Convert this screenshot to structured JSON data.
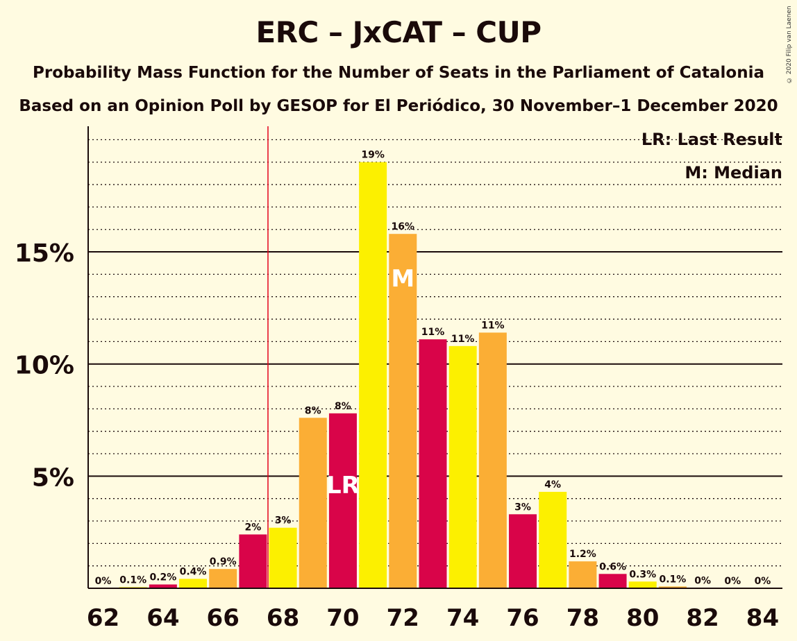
{
  "title": "ERC – JxCAT – CUP",
  "subtitle1": "Probability Mass Function for the Number of Seats in the Parliament of Catalonia",
  "subtitle2": "Based on an Opinion Poll by GESOP for El Periódico, 30 November–1 December 2020",
  "copyright": "© 2020 Filip van Laenen",
  "legend": {
    "last_result": "LR: Last Result",
    "median": "M: Median"
  },
  "colors": {
    "background": "#FFFBE1",
    "red": "#D90449",
    "yellow": "#FCF000",
    "orange": "#FBAE35",
    "last_result_line": "#E3001B"
  },
  "chart_data": {
    "type": "bar",
    "x": [
      62,
      63,
      64,
      65,
      66,
      67,
      68,
      69,
      70,
      71,
      72,
      73,
      74,
      75,
      76,
      77,
      78,
      79,
      80,
      81,
      82,
      83,
      84
    ],
    "values": [
      0,
      0.05,
      0.17,
      0.42,
      0.86,
      2.4,
      2.7,
      7.6,
      7.8,
      19,
      15.8,
      11.1,
      10.8,
      11.4,
      3.3,
      4.3,
      1.2,
      0.64,
      0.3,
      0.08,
      0.01,
      0,
      0
    ],
    "labels": [
      "0%",
      "0.1%",
      "0.2%",
      "0.4%",
      "0.9%",
      "2%",
      "3%",
      "8%",
      "8%",
      "19%",
      "16%",
      "11%",
      "11%",
      "11%",
      "3%",
      "4%",
      "1.2%",
      "0.6%",
      "0.3%",
      "0.1%",
      "0%",
      "0%",
      "0%"
    ],
    "bar_colors": [
      "red",
      "yellow",
      "red",
      "yellow",
      "orange",
      "red",
      "yellow",
      "orange",
      "red",
      "yellow",
      "orange",
      "red",
      "yellow",
      "orange",
      "red",
      "yellow",
      "orange",
      "red",
      "yellow",
      "orange",
      "red",
      "yellow",
      "orange"
    ],
    "x_ticks": [
      "62",
      "64",
      "66",
      "68",
      "70",
      "72",
      "74",
      "76",
      "78",
      "80",
      "82",
      "84"
    ],
    "y_ticks": [
      "5%",
      "10%",
      "15%"
    ],
    "y_tick_values": [
      5,
      10,
      15
    ],
    "ylim": [
      0,
      20.6
    ],
    "last_result": 70,
    "last_result_label": "LR",
    "median": 72,
    "median_label": "M",
    "majority_line_x": 67.5,
    "grid": "dotted every 1%, solid at 5%, 10%, 15%",
    "legend_position": "top-right"
  }
}
